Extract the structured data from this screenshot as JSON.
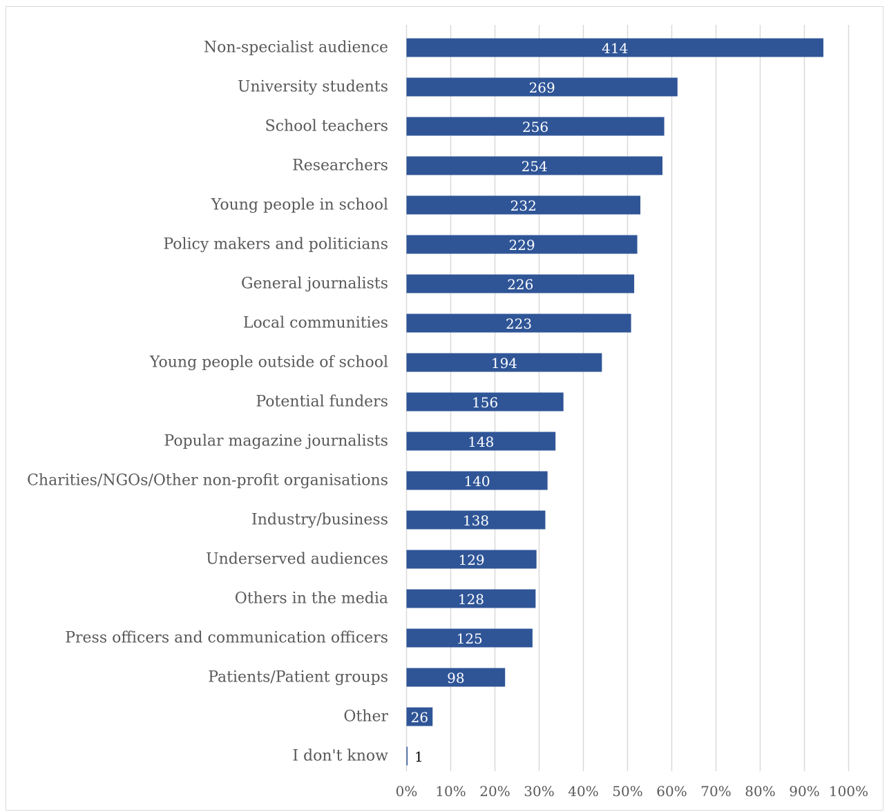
{
  "chart_data": {
    "type": "bar",
    "orientation": "horizontal",
    "title": "",
    "xlabel": "",
    "ylabel": "",
    "categories": [
      "Non-specialist audience",
      "University students",
      "School teachers",
      "Researchers",
      "Young people in school",
      "Policy makers and politicians",
      "General journalists",
      "Local communities",
      "Young people outside of school",
      "Potential funders",
      "Popular magazine journalists",
      "Charities/NGOs/Other non-profit organisations",
      "Industry/business",
      "Underserved audiences",
      "Others in the media",
      "Press officers and communication officers",
      "Patients/Patient groups",
      "Other",
      "I don't know"
    ],
    "values_percent": [
      94.3,
      61.3,
      58.3,
      57.9,
      52.9,
      52.2,
      51.5,
      50.8,
      44.2,
      35.5,
      33.7,
      31.9,
      31.4,
      29.4,
      29.2,
      28.5,
      22.3,
      5.9,
      0.2
    ],
    "data_labels": [
      "414",
      "269",
      "256",
      "254",
      "232",
      "229",
      "226",
      "223",
      "194",
      "156",
      "148",
      "140",
      "138",
      "129",
      "128",
      "125",
      "98",
      "26",
      "1"
    ],
    "xlim": [
      0,
      100
    ],
    "xticks": [
      "0%",
      "10%",
      "20%",
      "30%",
      "40%",
      "50%",
      "60%",
      "70%",
      "80%",
      "90%",
      "100%"
    ],
    "grid": true,
    "legend": "none",
    "colors": {
      "bar": "#2f5597",
      "grid": "#d9d9d9",
      "text": "#595959",
      "label_inside": "#ffffff",
      "label_outside": "#000000"
    }
  }
}
